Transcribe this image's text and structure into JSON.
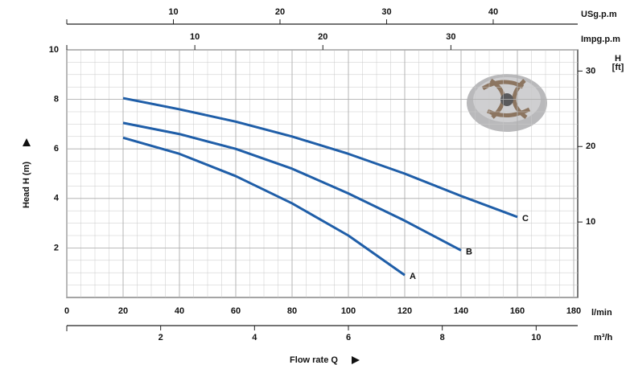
{
  "chart_data": {
    "type": "line",
    "x_label": "Flow rate Q",
    "x_unit": "l/min",
    "y_label": "Head H (m)",
    "x": [
      20,
      40,
      60,
      80,
      100,
      120,
      140,
      160
    ],
    "xlim": [
      0,
      180
    ],
    "xticks": [
      0,
      20,
      40,
      60,
      80,
      100,
      120,
      140,
      160,
      180
    ],
    "ylim": [
      0,
      10
    ],
    "yticks": [
      2,
      4,
      6,
      8,
      10
    ],
    "grid": true,
    "series": [
      {
        "name": "A",
        "color": "#1f5ea8",
        "values": [
          6.45,
          5.8,
          4.9,
          3.8,
          2.5,
          0.9,
          null,
          null
        ]
      },
      {
        "name": "B",
        "color": "#1f5ea8",
        "values": [
          7.05,
          6.6,
          6.0,
          5.2,
          4.2,
          3.1,
          1.9,
          null
        ]
      },
      {
        "name": "C",
        "color": "#1f5ea8",
        "values": [
          8.05,
          7.6,
          7.1,
          6.5,
          5.8,
          5.0,
          4.1,
          3.25
        ]
      }
    ],
    "bottom_axis2": {
      "label": "m³/h",
      "lim": [
        0,
        10.8
      ],
      "ticks": [
        2,
        4,
        6,
        8,
        10
      ]
    },
    "top_axes": [
      {
        "label": "USg.p.m",
        "lim": [
          0,
          47.55
        ],
        "ticks": [
          10,
          20,
          30,
          40
        ]
      },
      {
        "label": "Impg.p.m",
        "lim": [
          0,
          39.59
        ],
        "ticks": [
          10,
          20,
          30
        ]
      }
    ],
    "y2_label_lines": [
      "H",
      "[ft]"
    ],
    "y2lim": [
      0,
      32.81
    ],
    "y2ticks": [
      10,
      20,
      30
    ]
  }
}
